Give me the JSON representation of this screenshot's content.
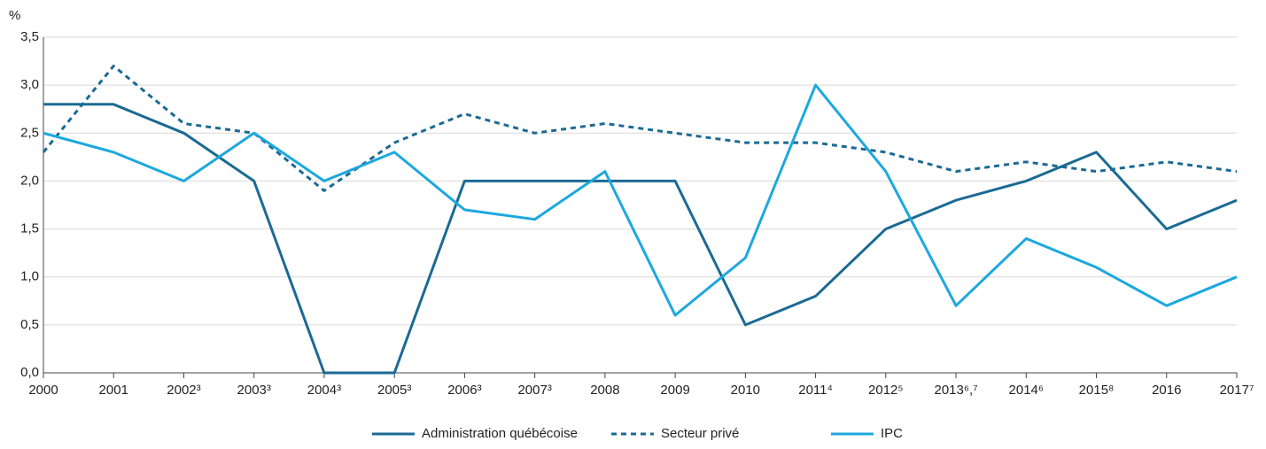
{
  "chart_data": {
    "type": "line",
    "y_label": "%",
    "categories": [
      "2000",
      "2001",
      "2002³",
      "2003³",
      "2004³",
      "2005³",
      "2006³",
      "2007³",
      "2008",
      "2009",
      "2010",
      "2011⁴",
      "2012⁵",
      "2013⁶,⁷",
      "2014⁶",
      "2015⁸",
      "2016",
      "2017⁷"
    ],
    "series": [
      {
        "name": "Administration québécoise",
        "color": "#1b6a94",
        "dashed": false,
        "values": [
          2.8,
          2.8,
          2.5,
          2.0,
          0,
          0,
          2.0,
          2.0,
          2.0,
          2.0,
          0.5,
          0.8,
          1.5,
          1.8,
          2.0,
          2.3,
          1.5,
          1.8
        ]
      },
      {
        "name": "Secteur privé",
        "color": "#1b6a94",
        "dashed": true,
        "values": [
          2.3,
          3.2,
          2.6,
          2.5,
          1.9,
          2.4,
          2.7,
          2.5,
          2.6,
          2.5,
          2.4,
          2.4,
          2.3,
          2.1,
          2.2,
          2.1,
          2.2,
          2.1
        ]
      },
      {
        "name": "IPC",
        "color": "#1ca8df",
        "dashed": false,
        "values": [
          2.5,
          2.3,
          2.0,
          2.5,
          2.0,
          2.3,
          1.7,
          1.6,
          2.1,
          0.6,
          1.2,
          3.0,
          2.1,
          0.7,
          1.4,
          1.1,
          0.7,
          1.0
        ]
      }
    ],
    "ylim": [
      0,
      3.5
    ],
    "yticks": [
      {
        "value": 0,
        "label": "0,0"
      },
      {
        "value": 0.5,
        "label": "0,5"
      },
      {
        "value": 1,
        "label": "1,0"
      },
      {
        "value": 1.5,
        "label": "1,5"
      },
      {
        "value": 2,
        "label": "2,0"
      },
      {
        "value": 2.5,
        "label": "2,5"
      },
      {
        "value": 3,
        "label": "3,0"
      },
      {
        "value": 3.5,
        "label": "3,5"
      }
    ],
    "grid": true,
    "legend": "bottom"
  }
}
